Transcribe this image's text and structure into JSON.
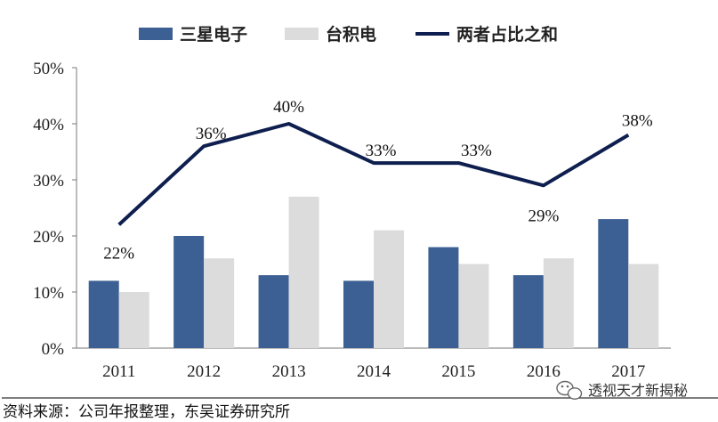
{
  "chart_data": {
    "type": "bar",
    "categories": [
      "2011",
      "2012",
      "2013",
      "2014",
      "2015",
      "2016",
      "2017"
    ],
    "series": [
      {
        "name": "三星电子",
        "type": "bar",
        "color": "#3c5f94",
        "values": [
          12,
          20,
          13,
          12,
          18,
          13,
          23
        ]
      },
      {
        "name": "台积电",
        "type": "bar",
        "color": "#dcdcdc",
        "values": [
          10,
          16,
          27,
          21,
          15,
          16,
          15
        ]
      },
      {
        "name": "两者占比之和",
        "type": "line",
        "color": "#0e1f4f",
        "values": [
          22,
          36,
          40,
          33,
          33,
          29,
          38
        ],
        "labels": [
          "22%",
          "36%",
          "40%",
          "33%",
          "33%",
          "29%",
          "38%"
        ]
      }
    ],
    "ylim": [
      0,
      50
    ],
    "yticks": [
      "0%",
      "10%",
      "20%",
      "30%",
      "40%",
      "50%"
    ],
    "legend_position": "top",
    "grid": false
  },
  "source": "资料来源：公司年报整理，东吴证券研究所",
  "watermark": {
    "text": "透视天才新揭秘",
    "icon": "wechat-icon"
  }
}
